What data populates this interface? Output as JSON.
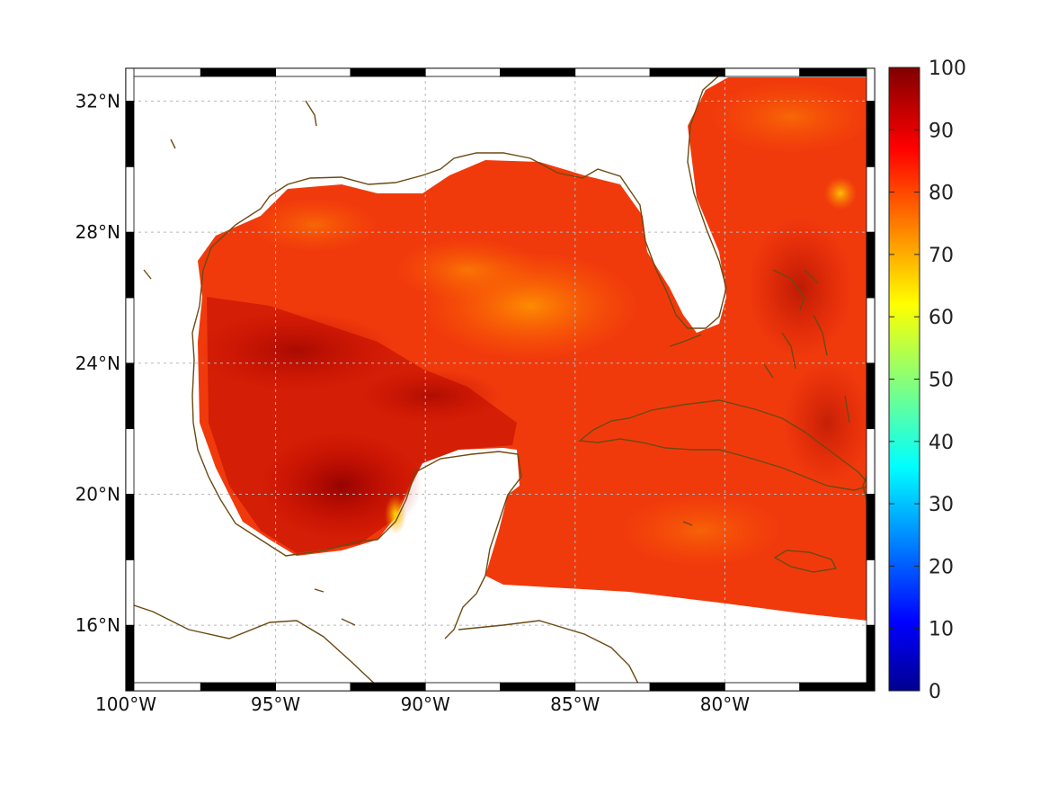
{
  "map": {
    "type": "gridded-field-map",
    "region": {
      "lon_range": [
        -100,
        -75
      ],
      "lat_range": [
        14,
        33
      ]
    },
    "lon_ticks": [
      {
        "value": -100,
        "label": "100°W"
      },
      {
        "value": -95,
        "label": "95°W"
      },
      {
        "value": -90,
        "label": "90°W"
      },
      {
        "value": -85,
        "label": "85°W"
      },
      {
        "value": -80,
        "label": "80°W"
      }
    ],
    "lat_ticks": [
      {
        "value": 16,
        "label": "16°N"
      },
      {
        "value": 20,
        "label": "20°N"
      },
      {
        "value": 24,
        "label": "24°N"
      },
      {
        "value": 28,
        "label": "28°N"
      },
      {
        "value": 32,
        "label": "32°N"
      }
    ],
    "grid": true,
    "frame_style": "alternating black/white graticule frame",
    "coastline_color": "#6b4a12",
    "land_color": "#ffffff",
    "colorbar": {
      "colormap": "jet",
      "min": 0,
      "max": 100,
      "ticks": [
        "0",
        "10",
        "20",
        "30",
        "40",
        "50",
        "60",
        "70",
        "80",
        "90",
        "100"
      ],
      "placement": "right"
    },
    "field_summary": "values mostly 75-95 over Gulf of Mexico and Caribbean; darkest (~95-100) in Bay of Campeche; local minimum ~65 near Yucatan west coast"
  }
}
